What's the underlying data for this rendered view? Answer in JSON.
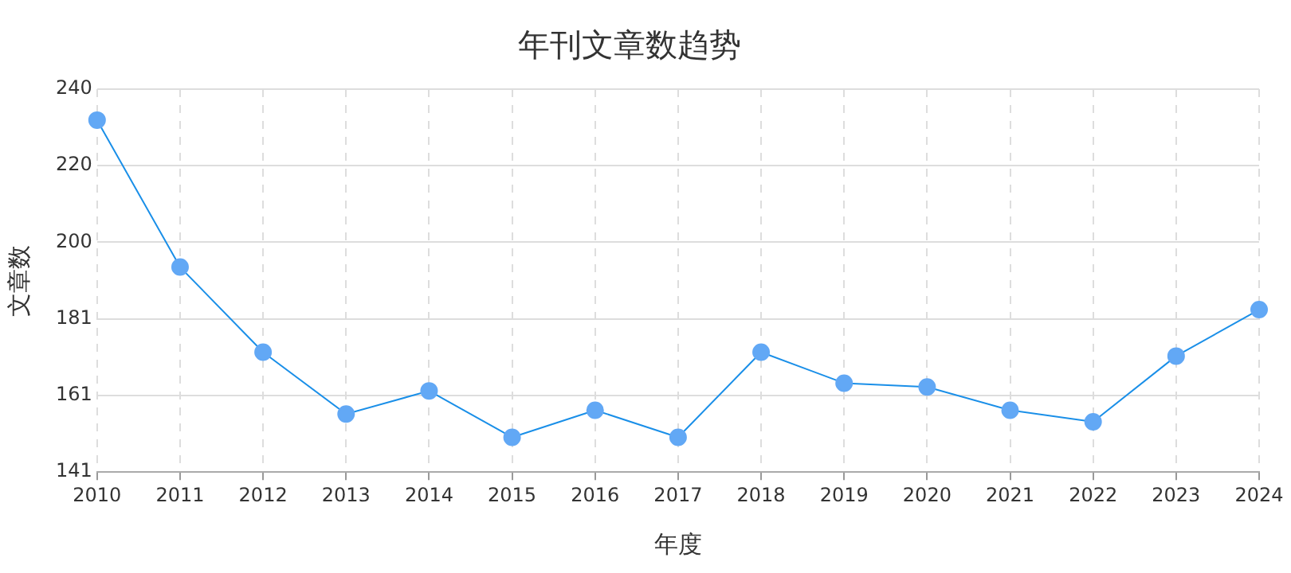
{
  "chart_data": {
    "type": "line",
    "title": "年刊文章数趋势",
    "xlabel": "年度",
    "ylabel": "文章数",
    "categories": [
      "2010",
      "2011",
      "2012",
      "2013",
      "2014",
      "2015",
      "2016",
      "2017",
      "2018",
      "2019",
      "2020",
      "2021",
      "2022",
      "2023",
      "2024"
    ],
    "series": [
      {
        "color": "#1a8fe8",
        "values": [
          232,
          194,
          172,
          156,
          162,
          150,
          157,
          150,
          172,
          164,
          163,
          157,
          154,
          171,
          183
        ]
      }
    ],
    "ylim": [
      141,
      240
    ],
    "yticks": [
      141,
      {
        "value": 160.8,
        "label": "161"
      },
      {
        "value": 180.6,
        "label": "181"
      },
      {
        "value": 200.4,
        "label": "200"
      },
      {
        "value": 220.2,
        "label": "220"
      },
      240
    ],
    "grid": true,
    "marker": "circle",
    "line_style": "solid",
    "legend": false
  }
}
